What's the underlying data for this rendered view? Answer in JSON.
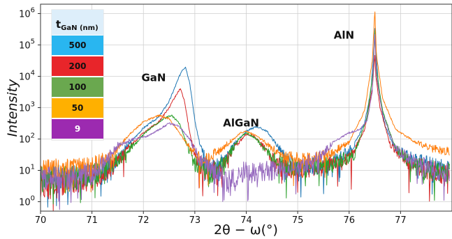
{
  "chart_data": {
    "type": "line",
    "xlabel": "2θ − ω(°)",
    "ylabel": "Intensity",
    "xlim": [
      70,
      78
    ],
    "ylim_log10": [
      -0.3,
      6.3
    ],
    "y_scale": "log",
    "grid": true,
    "x_ticks": [
      {
        "v": 70,
        "label": "70"
      },
      {
        "v": 71,
        "label": "71"
      },
      {
        "v": 72,
        "label": "72"
      },
      {
        "v": 73,
        "label": "73"
      },
      {
        "v": 74,
        "label": "74"
      },
      {
        "v": 75,
        "label": "75"
      },
      {
        "v": 76,
        "label": "76"
      },
      {
        "v": 77,
        "label": "77"
      }
    ],
    "y_ticks": [
      {
        "v": 0,
        "base": "10",
        "exp": "0"
      },
      {
        "v": 1,
        "base": "10",
        "exp": "1"
      },
      {
        "v": 2,
        "base": "10",
        "exp": "2"
      },
      {
        "v": 3,
        "base": "10",
        "exp": "3"
      },
      {
        "v": 4,
        "base": "10",
        "exp": "4"
      },
      {
        "v": 5,
        "base": "10",
        "exp": "5"
      },
      {
        "v": 6,
        "base": "10",
        "exp": "6"
      }
    ],
    "annotations": [
      {
        "text": "GaN",
        "x": 72.2,
        "y_log10": 3.85
      },
      {
        "text": "AlGaN",
        "x": 73.9,
        "y_log10": 2.4
      },
      {
        "text": "AlN",
        "x": 75.9,
        "y_log10": 5.2
      }
    ],
    "legend": {
      "title_main": "t",
      "title_sub": "GaN (nm)",
      "position": "top-left",
      "entries": [
        {
          "label": "500",
          "color": "#29b6f0",
          "text_color": "#111111"
        },
        {
          "label": "200",
          "color": "#e8252a",
          "text_color": "#111111"
        },
        {
          "label": "100",
          "color": "#6aa84f",
          "text_color": "#111111"
        },
        {
          "label": "50",
          "color": "#ffb000",
          "text_color": "#111111"
        },
        {
          "label": "9",
          "color": "#9c2ab0",
          "text_color": "#ffffff"
        }
      ]
    },
    "series": [
      {
        "label": "500",
        "color": "#1f77b4",
        "points": [
          [
            70,
            0.8
          ],
          [
            70.5,
            0.8
          ],
          [
            71,
            0.85
          ],
          [
            71.4,
            1.2
          ],
          [
            71.7,
            1.8
          ],
          [
            72,
            2.35
          ],
          [
            72.3,
            2.7
          ],
          [
            72.5,
            3.2
          ],
          [
            72.65,
            3.8
          ],
          [
            72.75,
            4.2
          ],
          [
            72.82,
            4.3
          ],
          [
            72.9,
            3.8
          ],
          [
            73.0,
            2.6
          ],
          [
            73.1,
            1.8
          ],
          [
            73.3,
            1.0
          ],
          [
            73.6,
            1.35
          ],
          [
            73.8,
            1.9
          ],
          [
            74.0,
            2.25
          ],
          [
            74.2,
            2.4
          ],
          [
            74.4,
            2.25
          ],
          [
            74.6,
            1.8
          ],
          [
            74.8,
            1.3
          ],
          [
            75.0,
            1.1
          ],
          [
            75.4,
            1.15
          ],
          [
            75.8,
            1.35
          ],
          [
            76.1,
            1.8
          ],
          [
            76.3,
            2.5
          ],
          [
            76.42,
            3.5
          ],
          [
            76.48,
            4.8
          ],
          [
            76.5,
            5.6
          ],
          [
            76.52,
            4.8
          ],
          [
            76.58,
            3.5
          ],
          [
            76.7,
            2.4
          ],
          [
            76.9,
            1.7
          ],
          [
            77.3,
            1.3
          ],
          [
            77.95,
            1.0
          ]
        ]
      },
      {
        "label": "200",
        "color": "#d62728",
        "points": [
          [
            70,
            0.5
          ],
          [
            70.5,
            0.6
          ],
          [
            71,
            0.75
          ],
          [
            71.4,
            1.1
          ],
          [
            71.7,
            1.7
          ],
          [
            72,
            2.2
          ],
          [
            72.3,
            2.55
          ],
          [
            72.5,
            3.0
          ],
          [
            72.65,
            3.45
          ],
          [
            72.72,
            3.6
          ],
          [
            72.8,
            3.2
          ],
          [
            72.9,
            2.2
          ],
          [
            73.0,
            1.5
          ],
          [
            73.2,
            0.9
          ],
          [
            73.5,
            1.1
          ],
          [
            73.8,
            1.8
          ],
          [
            74.0,
            2.15
          ],
          [
            74.15,
            2.1
          ],
          [
            74.4,
            1.6
          ],
          [
            74.6,
            1.1
          ],
          [
            75.0,
            1.0
          ],
          [
            75.5,
            1.1
          ],
          [
            76.0,
            1.3
          ],
          [
            76.3,
            2.3
          ],
          [
            76.45,
            3.6
          ],
          [
            76.5,
            4.7
          ],
          [
            76.52,
            4.0
          ],
          [
            76.6,
            3.0
          ],
          [
            76.8,
            1.8
          ],
          [
            77.2,
            1.2
          ],
          [
            77.95,
            0.8
          ]
        ]
      },
      {
        "label": "100",
        "color": "#2ca02c",
        "points": [
          [
            70,
            0.7
          ],
          [
            70.5,
            0.75
          ],
          [
            71,
            0.8
          ],
          [
            71.4,
            1.2
          ],
          [
            71.8,
            1.8
          ],
          [
            72.1,
            2.3
          ],
          [
            72.4,
            2.65
          ],
          [
            72.55,
            2.75
          ],
          [
            72.7,
            2.5
          ],
          [
            72.85,
            1.8
          ],
          [
            73.0,
            1.2
          ],
          [
            73.3,
            0.9
          ],
          [
            73.6,
            1.3
          ],
          [
            73.85,
            2.0
          ],
          [
            74.0,
            2.2
          ],
          [
            74.2,
            2.0
          ],
          [
            74.5,
            1.4
          ],
          [
            74.8,
            1.1
          ],
          [
            75.2,
            1.1
          ],
          [
            75.7,
            1.2
          ],
          [
            76.1,
            1.5
          ],
          [
            76.35,
            2.7
          ],
          [
            76.47,
            4.2
          ],
          [
            76.5,
            5.5
          ],
          [
            76.53,
            4.2
          ],
          [
            76.65,
            2.9
          ],
          [
            76.9,
            1.7
          ],
          [
            77.3,
            1.1
          ],
          [
            77.95,
            0.9
          ]
        ]
      },
      {
        "label": "50",
        "color": "#ff7f0e",
        "points": [
          [
            70,
            1.0
          ],
          [
            70.5,
            1.1
          ],
          [
            71,
            1.15
          ],
          [
            71.4,
            1.5
          ],
          [
            71.7,
            2.1
          ],
          [
            72.0,
            2.55
          ],
          [
            72.3,
            2.75
          ],
          [
            72.5,
            2.65
          ],
          [
            72.7,
            2.2
          ],
          [
            72.9,
            1.7
          ],
          [
            73.2,
            1.3
          ],
          [
            73.6,
            1.8
          ],
          [
            73.9,
            2.2
          ],
          [
            74.0,
            2.25
          ],
          [
            74.2,
            2.1
          ],
          [
            74.5,
            1.7
          ],
          [
            74.8,
            1.4
          ],
          [
            75.2,
            1.35
          ],
          [
            75.6,
            1.5
          ],
          [
            76.0,
            1.9
          ],
          [
            76.3,
            2.9
          ],
          [
            76.45,
            4.5
          ],
          [
            76.5,
            6.1
          ],
          [
            76.53,
            4.7
          ],
          [
            76.65,
            3.3
          ],
          [
            76.9,
            2.3
          ],
          [
            77.3,
            1.9
          ],
          [
            77.6,
            1.7
          ],
          [
            77.95,
            1.6
          ]
        ]
      },
      {
        "label": "9",
        "color": "#9467bd",
        "points": [
          [
            70,
            0.7
          ],
          [
            70.5,
            0.75
          ],
          [
            71,
            0.85
          ],
          [
            71.3,
            1.4
          ],
          [
            71.5,
            1.8
          ],
          [
            71.8,
            2.0
          ],
          [
            72.1,
            2.1
          ],
          [
            72.3,
            2.3
          ],
          [
            72.5,
            2.5
          ],
          [
            72.7,
            2.4
          ],
          [
            72.9,
            2.0
          ],
          [
            73.1,
            1.3
          ],
          [
            73.4,
            0.9
          ],
          [
            73.7,
            0.6
          ],
          [
            73.9,
            0.9
          ],
          [
            74.1,
            1.0
          ],
          [
            74.3,
            0.95
          ],
          [
            74.6,
            1.0
          ],
          [
            75.0,
            1.05
          ],
          [
            75.4,
            1.4
          ],
          [
            75.7,
            1.9
          ],
          [
            76.0,
            2.2
          ],
          [
            76.2,
            2.3
          ],
          [
            76.35,
            2.6
          ],
          [
            76.45,
            3.5
          ],
          [
            76.5,
            5.4
          ],
          [
            76.53,
            4.0
          ],
          [
            76.65,
            2.8
          ],
          [
            76.9,
            1.7
          ],
          [
            77.3,
            1.2
          ],
          [
            77.95,
            0.9
          ]
        ]
      }
    ]
  }
}
